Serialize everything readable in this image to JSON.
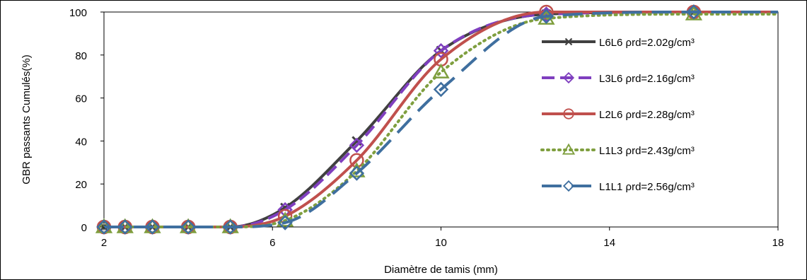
{
  "chart_data": {
    "type": "line",
    "title": "",
    "xlabel": "Diamètre de tamis (mm)",
    "ylabel": "GBR passants Cumulés(%)",
    "xlim": [
      2,
      18
    ],
    "ylim": [
      0,
      100
    ],
    "xticks": [
      2,
      6,
      10,
      14,
      18
    ],
    "yticks": [
      0,
      20,
      40,
      60,
      80,
      100
    ],
    "grid": false,
    "legend_position": "right",
    "x": [
      2,
      2.5,
      3.15,
      4,
      5,
      6.3,
      8,
      10,
      12.5,
      16
    ],
    "series": [
      {
        "name": "L6L6 ρrd=2.02g/cm³",
        "color": "#404040",
        "dash": "",
        "marker": "x",
        "values": [
          0,
          0,
          0,
          0,
          0,
          9,
          40,
          82,
          99,
          100
        ]
      },
      {
        "name": "L3L6 ρrd=2.16g/cm³",
        "color": "#7F3FBF",
        "dash": "18,8",
        "marker": "diamond",
        "values": [
          0,
          0,
          0,
          0,
          0,
          8,
          38,
          82,
          99,
          100
        ]
      },
      {
        "name": "L2L6 ρrd=2.28g/cm³",
        "color": "#C0504D",
        "dash": "",
        "marker": "circle",
        "values": [
          0,
          0,
          0,
          0,
          0,
          5,
          31,
          78,
          100,
          100
        ]
      },
      {
        "name": "L1L3 ρrd=2.43g/cm³",
        "color": "#7F9F3F",
        "dash": "2,6",
        "marker": "triangle",
        "values": [
          0,
          0,
          0,
          0,
          0,
          3,
          26,
          72,
          97,
          99
        ]
      },
      {
        "name": "L1L1 ρrd=2.56g/cm³",
        "color": "#3F6F9F",
        "dash": "28,14",
        "marker": "diamond",
        "values": [
          0,
          0,
          0,
          0,
          0,
          2,
          25,
          64,
          98,
          100
        ]
      }
    ]
  }
}
